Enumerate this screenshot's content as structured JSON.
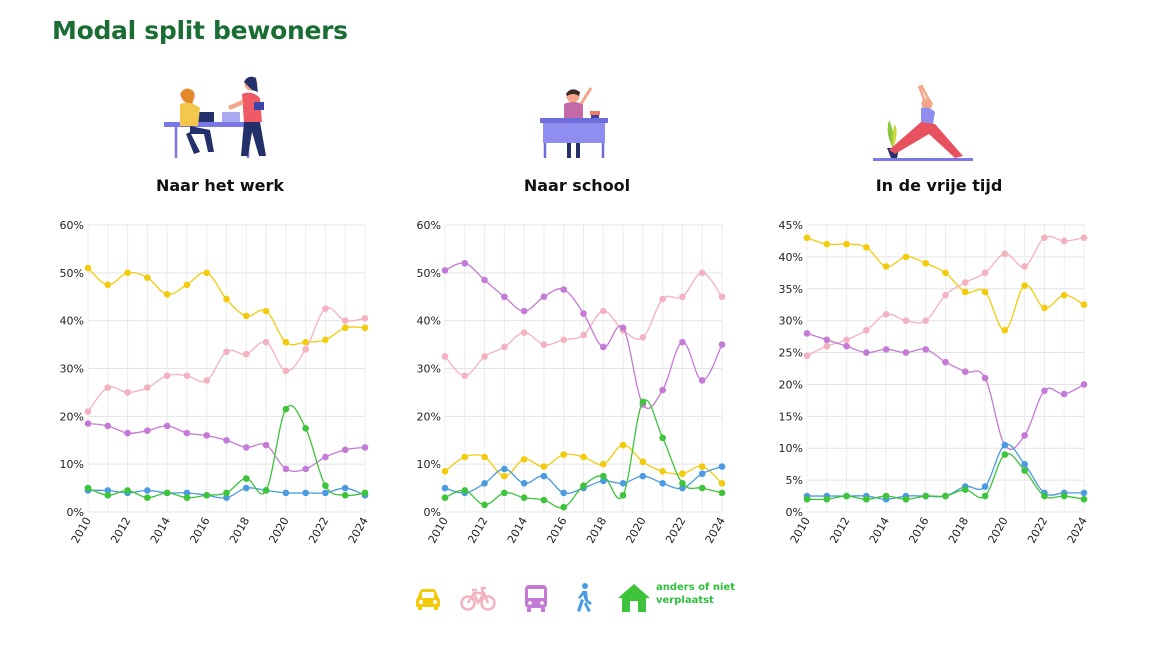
{
  "page": {
    "title": "Modal split bewoners"
  },
  "colors": {
    "title": "#1a6e34",
    "auto": "#f2cc0c",
    "fiets": "#f4b1bf",
    "ov": "#c47ad6",
    "lopen": "#4a9be0",
    "anders": "#3dc43a"
  },
  "panels": [
    {
      "title": "Naar het werk",
      "illustration": "people-at-desk-illustration"
    },
    {
      "title": "Naar school",
      "illustration": "student-at-desk-illustration"
    },
    {
      "title": "In de vrije tijd",
      "illustration": "yoga-pose-illustration"
    }
  ],
  "legend": {
    "items": [
      {
        "icon": "car-icon",
        "series": "auto"
      },
      {
        "icon": "bicycle-icon",
        "series": "fiets"
      },
      {
        "icon": "bus-icon",
        "series": "ov"
      },
      {
        "icon": "walking-person-icon",
        "series": "lopen"
      },
      {
        "icon": "house-icon",
        "series": "anders"
      }
    ],
    "anders_label_line1": "anders of niet",
    "anders_label_line2": "verplaatst"
  },
  "chart_data": [
    {
      "type": "line",
      "title": "Naar het werk",
      "x": [
        2010,
        2011,
        2012,
        2013,
        2014,
        2015,
        2016,
        2017,
        2018,
        2019,
        2020,
        2021,
        2022,
        2023,
        2024
      ],
      "x_tick_labels": [
        "2010",
        "2012",
        "2014",
        "2016",
        "2018",
        "2020",
        "2022",
        "2024"
      ],
      "ylim": [
        0,
        60
      ],
      "y_ticks": [
        0,
        10,
        20,
        30,
        40,
        50,
        60
      ],
      "y_tick_labels": [
        "0%",
        "10%",
        "20%",
        "30%",
        "40%",
        "50%",
        "60%"
      ],
      "grid": true,
      "series": [
        {
          "key": "auto",
          "values": [
            51,
            47.5,
            50,
            49,
            45.5,
            47.5,
            50,
            44.5,
            41,
            42,
            35.5,
            35.5,
            36,
            38.5,
            38.5
          ]
        },
        {
          "key": "fiets",
          "values": [
            21,
            26,
            25,
            26,
            28.5,
            28.5,
            27.5,
            33.5,
            33,
            35.5,
            29.5,
            34,
            42.5,
            40,
            40.5
          ]
        },
        {
          "key": "ov",
          "values": [
            18.5,
            18,
            16.5,
            17,
            18,
            16.5,
            16,
            15,
            13.5,
            14,
            9,
            9,
            11.5,
            13,
            13.5
          ]
        },
        {
          "key": "lopen",
          "values": [
            4.5,
            4.5,
            4,
            4.5,
            4,
            4,
            3.5,
            3,
            5,
            4.5,
            4,
            4,
            4,
            5,
            3.5
          ]
        },
        {
          "key": "anders",
          "values": [
            5,
            3.5,
            4.5,
            3,
            4,
            3,
            3.5,
            4,
            7,
            4.5,
            21.5,
            17.5,
            5.5,
            3.5,
            4
          ]
        }
      ]
    },
    {
      "type": "line",
      "title": "Naar school",
      "x": [
        2010,
        2011,
        2012,
        2013,
        2014,
        2015,
        2016,
        2017,
        2018,
        2019,
        2020,
        2021,
        2022,
        2023,
        2024
      ],
      "x_tick_labels": [
        "2010",
        "2012",
        "2014",
        "2016",
        "2018",
        "2020",
        "2022",
        "2024"
      ],
      "ylim": [
        0,
        60
      ],
      "y_ticks": [
        0,
        10,
        20,
        30,
        40,
        50,
        60
      ],
      "y_tick_labels": [
        "0%",
        "10%",
        "20%",
        "30%",
        "40%",
        "50%",
        "60%"
      ],
      "grid": true,
      "series": [
        {
          "key": "auto",
          "values": [
            8.5,
            11.5,
            11.5,
            7.5,
            11,
            9.5,
            12,
            11.5,
            10,
            14,
            10.5,
            8.5,
            8,
            9.5,
            6
          ]
        },
        {
          "key": "fiets",
          "values": [
            32.5,
            28.5,
            32.5,
            34.5,
            37.5,
            35,
            36,
            37,
            42,
            38,
            36.5,
            44.5,
            45,
            50,
            45
          ]
        },
        {
          "key": "ov",
          "values": [
            50.5,
            52,
            48.5,
            45,
            42,
            45,
            46.5,
            41.5,
            34.5,
            38.5,
            22.5,
            25.5,
            35.5,
            27.5,
            35
          ]
        },
        {
          "key": "lopen",
          "values": [
            5,
            4,
            6,
            9,
            6,
            7.5,
            4,
            5,
            6.5,
            6,
            7.5,
            6,
            5,
            8,
            9.5
          ]
        },
        {
          "key": "anders",
          "values": [
            3,
            4.5,
            1.5,
            4,
            3,
            2.5,
            1,
            5.5,
            7.5,
            3.5,
            23,
            15.5,
            6,
            5,
            4
          ]
        }
      ]
    },
    {
      "type": "line",
      "title": "In de vrije tijd",
      "x": [
        2010,
        2011,
        2012,
        2013,
        2014,
        2015,
        2016,
        2017,
        2018,
        2019,
        2020,
        2021,
        2022,
        2023,
        2024
      ],
      "x_tick_labels": [
        "2010",
        "2012",
        "2014",
        "2016",
        "2018",
        "2020",
        "2022",
        "2024"
      ],
      "ylim": [
        0,
        45
      ],
      "y_ticks": [
        0,
        5,
        10,
        15,
        20,
        25,
        30,
        35,
        40,
        45
      ],
      "y_tick_labels": [
        "0%",
        "5%",
        "10%",
        "15%",
        "20%",
        "25%",
        "30%",
        "35%",
        "40%",
        "45%"
      ],
      "grid": true,
      "series": [
        {
          "key": "auto",
          "values": [
            43,
            42,
            42,
            41.5,
            38.5,
            40,
            39,
            37.5,
            34.5,
            34.5,
            28.5,
            35.5,
            32,
            34,
            32.5
          ]
        },
        {
          "key": "fiets",
          "values": [
            24.5,
            26,
            27,
            28.5,
            31,
            30,
            30,
            34,
            36,
            37.5,
            40.5,
            38.5,
            43,
            42.5,
            43
          ]
        },
        {
          "key": "ov",
          "values": [
            28,
            27,
            26,
            25,
            25.5,
            25,
            25.5,
            23.5,
            22,
            21,
            10.5,
            12,
            19,
            18.5,
            20
          ]
        },
        {
          "key": "lopen",
          "values": [
            2.5,
            2.5,
            2.5,
            2.5,
            2,
            2.5,
            2.5,
            2.5,
            4,
            4,
            10.5,
            7.5,
            3,
            3,
            3
          ]
        },
        {
          "key": "anders",
          "values": [
            2,
            2,
            2.5,
            2,
            2.5,
            2,
            2.5,
            2.5,
            3.5,
            2.5,
            9,
            6.5,
            2.5,
            2.5,
            2
          ]
        }
      ]
    }
  ]
}
